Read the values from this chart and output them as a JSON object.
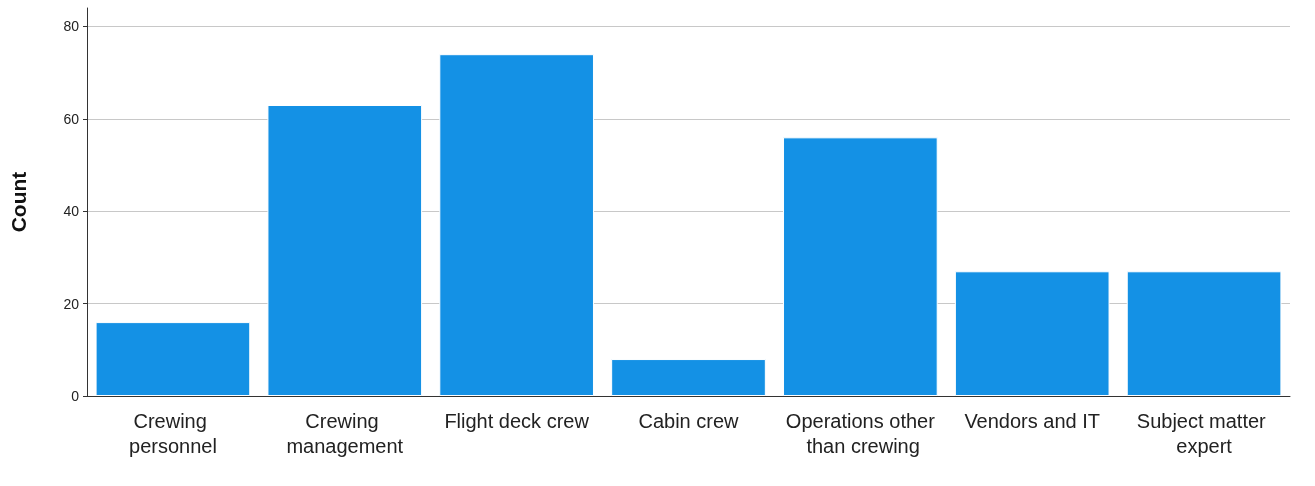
{
  "chart_data": {
    "type": "bar",
    "ylabel": "Count",
    "categories": [
      "Crewing personnel",
      "Crewing management",
      "Flight deck crew",
      "Cabin crew",
      "Operations other than crewing",
      "Vendors and IT",
      "Subject matter expert"
    ],
    "values": [
      16,
      63,
      74,
      8,
      56,
      27,
      27
    ],
    "color": "#1491e5",
    "ylim": [
      0,
      84
    ],
    "yticks": [
      0,
      20,
      40,
      60,
      80
    ],
    "grid": "y"
  }
}
